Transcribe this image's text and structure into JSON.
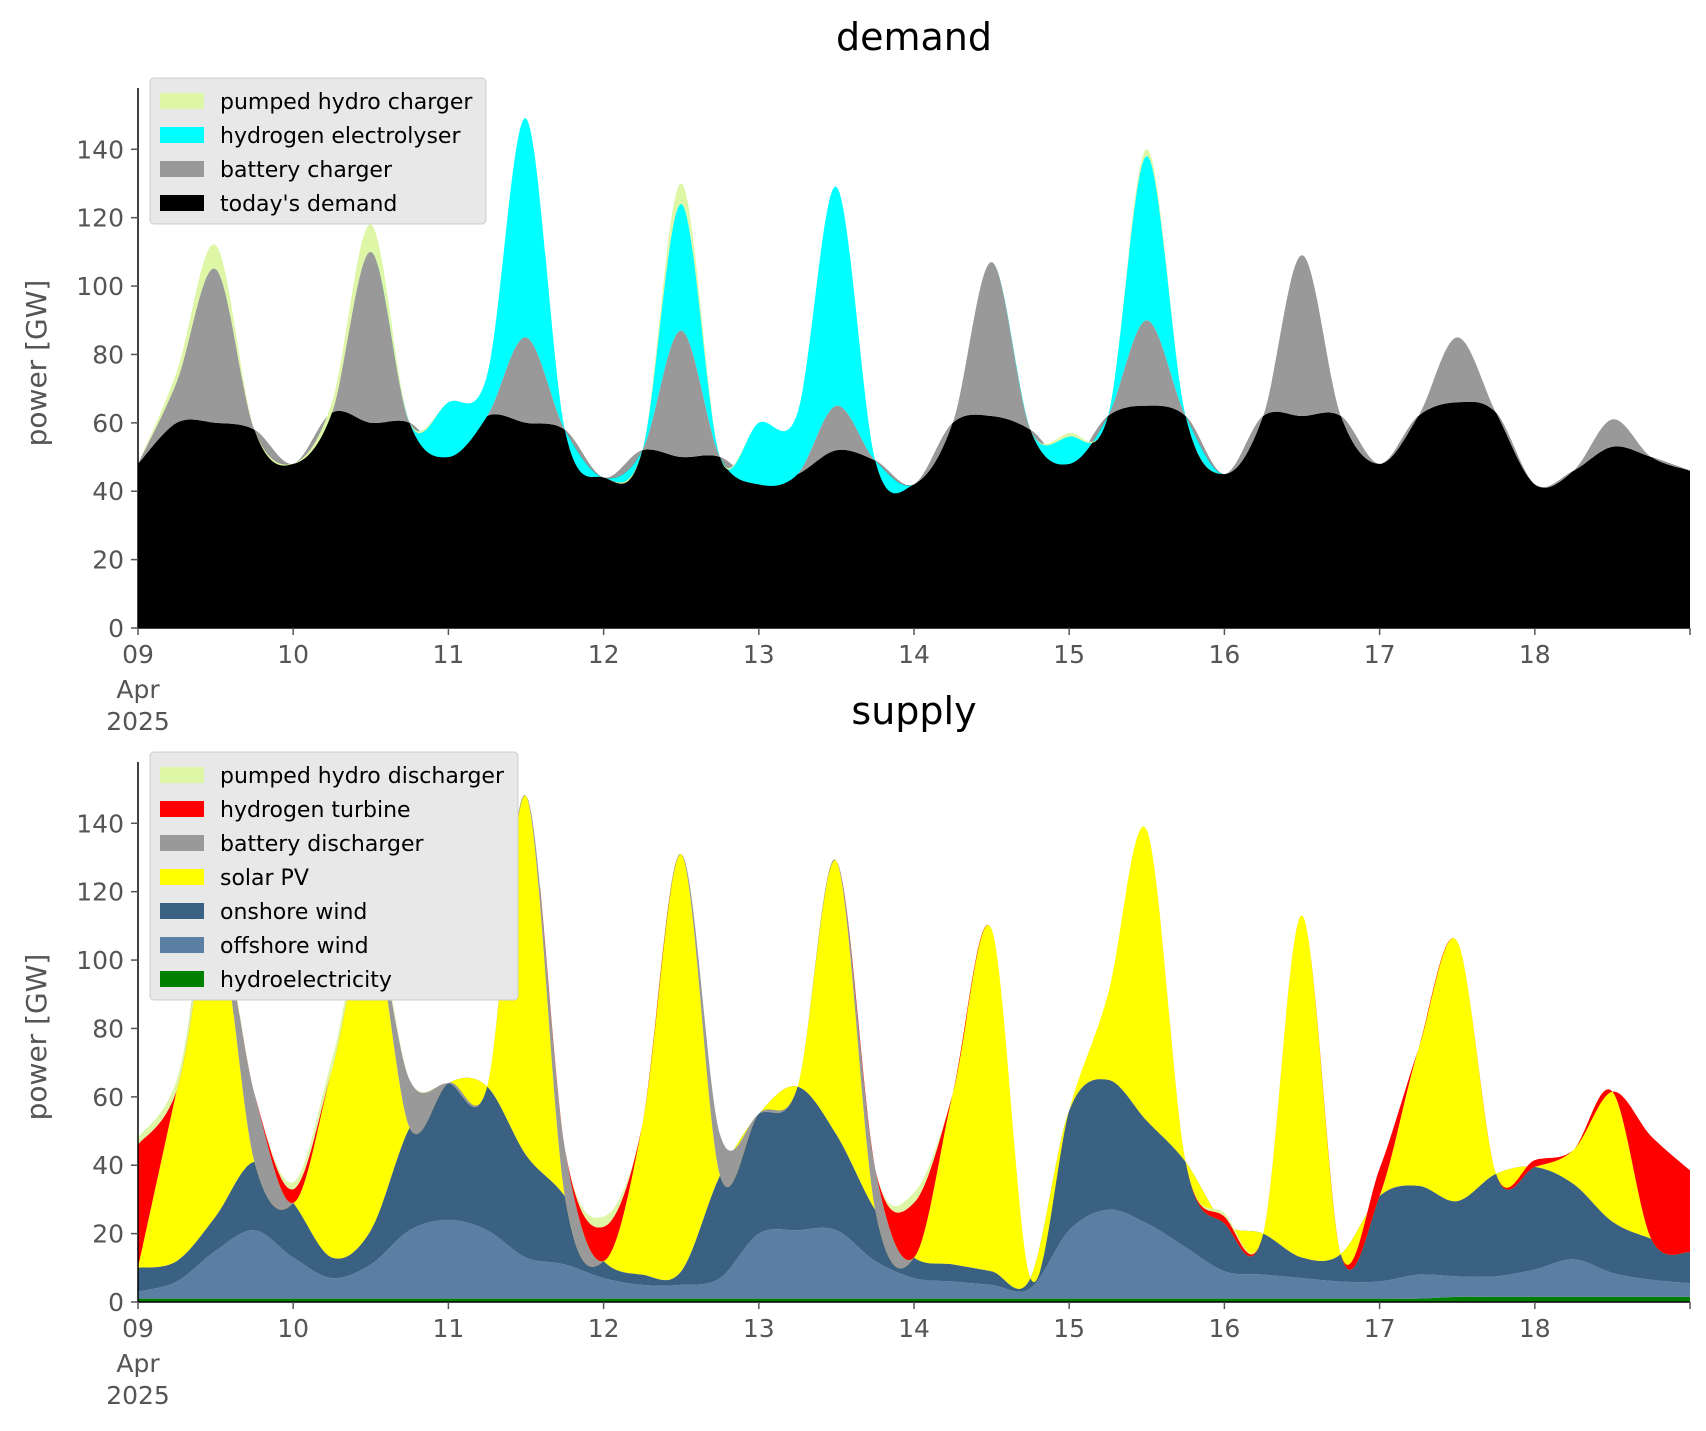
{
  "chart_data": [
    {
      "type": "area",
      "title": "demand",
      "ylabel": "power [GW]",
      "xlabel": "",
      "ylim": [
        0,
        155
      ],
      "xlim_days": [
        9,
        19
      ],
      "stacked": true,
      "grid": false,
      "legend_position": "top-left",
      "yticks": [
        "0",
        "20",
        "40",
        "60",
        "80",
        "100",
        "120",
        "140"
      ],
      "xticks": [
        "09",
        "10",
        "11",
        "12",
        "13",
        "14",
        "15",
        "16",
        "17",
        "18"
      ],
      "xtick_sub": [
        "Apr",
        "2025"
      ],
      "x": [
        9.0,
        9.25,
        9.5,
        9.75,
        10.0,
        10.25,
        10.5,
        10.75,
        11.0,
        11.25,
        11.5,
        11.75,
        12.0,
        12.25,
        12.5,
        12.75,
        13.0,
        13.25,
        13.5,
        13.75,
        14.0,
        14.25,
        14.5,
        14.75,
        15.0,
        15.25,
        15.5,
        15.75,
        16.0,
        16.25,
        16.5,
        16.75,
        17.0,
        17.25,
        17.5,
        17.75,
        18.0,
        18.25,
        18.5,
        18.75,
        19.0
      ],
      "series": [
        {
          "name": "today's demand",
          "color": "#000000",
          "values": [
            48,
            60,
            60,
            58,
            48,
            63,
            60,
            60,
            50,
            62,
            60,
            58,
            44,
            52,
            50,
            50,
            42,
            45,
            52,
            49,
            42,
            60,
            62,
            58,
            48,
            62,
            65,
            62,
            45,
            62,
            62,
            62,
            48,
            62,
            66,
            63,
            42,
            46,
            53,
            50,
            46
          ]
        },
        {
          "name": "battery charger",
          "color": "#999999",
          "values": [
            0,
            12,
            45,
            0,
            0,
            0,
            50,
            0,
            0,
            0,
            25,
            0,
            0,
            0,
            37,
            0,
            0,
            0,
            13,
            0,
            0,
            0,
            45,
            0,
            0,
            0,
            25,
            0,
            0,
            0,
            47,
            0,
            0,
            0,
            19,
            0,
            0,
            0,
            8,
            0,
            0
          ]
        },
        {
          "name": "hydrogen electrolyser",
          "color": "#00ffff",
          "values": [
            0,
            0,
            0,
            0,
            0,
            0,
            0,
            0,
            16,
            12,
            64,
            0,
            0,
            0,
            37,
            0,
            18,
            18,
            64,
            0,
            0,
            0,
            0,
            0,
            8,
            0,
            48,
            0,
            0,
            0,
            0,
            0,
            0,
            0,
            0,
            0,
            0,
            0,
            0,
            0,
            0
          ]
        },
        {
          "name": "pumped hydro charger",
          "color": "#ddf7a7",
          "values": [
            0,
            3,
            7,
            0,
            0,
            3,
            8,
            0,
            0,
            0,
            0,
            0,
            0,
            0,
            6,
            0,
            0,
            0,
            0,
            0,
            0,
            0,
            0,
            0,
            1,
            0,
            2,
            0,
            0,
            0,
            0,
            0,
            0,
            0,
            0,
            0,
            0,
            0,
            0,
            0,
            0
          ]
        }
      ]
    },
    {
      "type": "area",
      "title": "supply",
      "ylabel": "power [GW]",
      "xlabel": "",
      "ylim": [
        0,
        155
      ],
      "xlim_days": [
        9,
        19
      ],
      "stacked": true,
      "grid": false,
      "legend_position": "top-left",
      "yticks": [
        "0",
        "20",
        "40",
        "60",
        "80",
        "100",
        "120",
        "140"
      ],
      "xticks": [
        "09",
        "10",
        "11",
        "12",
        "13",
        "14",
        "15",
        "16",
        "17",
        "18"
      ],
      "xtick_sub": [
        "Apr",
        "2025"
      ],
      "x": [
        9.0,
        9.25,
        9.5,
        9.75,
        10.0,
        10.25,
        10.5,
        10.75,
        11.0,
        11.25,
        11.5,
        11.75,
        12.0,
        12.25,
        12.5,
        12.75,
        13.0,
        13.25,
        13.5,
        13.75,
        14.0,
        14.25,
        14.5,
        14.75,
        15.0,
        15.25,
        15.5,
        15.75,
        16.0,
        16.25,
        16.5,
        16.75,
        17.0,
        17.25,
        17.5,
        17.75,
        18.0,
        18.25,
        18.5,
        18.75,
        19.0
      ],
      "series": [
        {
          "name": "hydroelectricity",
          "color": "#008000",
          "values": [
            1,
            1,
            1,
            1,
            1,
            1,
            1,
            1,
            1,
            1,
            1,
            1,
            1,
            1,
            1,
            1,
            1,
            1,
            1,
            1,
            1,
            1,
            1,
            1,
            1,
            1,
            1,
            1,
            1,
            1,
            1,
            1,
            1,
            1,
            1.5,
            1.5,
            1.5,
            1.5,
            1.5,
            1.5,
            1.5
          ]
        },
        {
          "name": "offshore wind",
          "color": "#5b7fa3",
          "values": [
            2,
            5,
            14,
            20,
            12,
            6,
            10,
            20,
            23,
            20,
            12,
            10,
            6,
            4,
            4,
            6,
            19,
            20,
            20,
            11,
            6,
            5,
            4,
            3,
            20,
            26,
            22,
            15,
            8,
            7,
            6,
            5,
            5,
            7,
            6,
            6,
            8,
            11,
            7,
            5,
            4
          ]
        },
        {
          "name": "onshore wind",
          "color": "#3b6182",
          "values": [
            7,
            6,
            10,
            20,
            16,
            6,
            10,
            30,
            40,
            42,
            30,
            20,
            5,
            3,
            4,
            30,
            35,
            42,
            28,
            15,
            6,
            5,
            4,
            3,
            35,
            38,
            30,
            25,
            14,
            12,
            6,
            8,
            25,
            26,
            22,
            30,
            30,
            22,
            15,
            12,
            9
          ]
        },
        {
          "name": "solar PV",
          "color": "#ffff00",
          "values": [
            0,
            50,
            88,
            0,
            0,
            55,
            90,
            0,
            0,
            0,
            105,
            0,
            0,
            44,
            122,
            0,
            0,
            0,
            80,
            0,
            0,
            50,
            100,
            0,
            0,
            25,
            85,
            0,
            0,
            0,
            100,
            0,
            0,
            40,
            76,
            0,
            0,
            10,
            38,
            0,
            0
          ]
        },
        {
          "name": "battery discharger",
          "color": "#999999",
          "values": [
            0,
            0,
            0,
            20,
            0,
            0,
            0,
            14,
            0,
            0,
            0,
            14,
            0,
            0,
            0,
            12,
            0,
            0,
            0,
            12,
            0,
            0,
            0,
            0,
            0,
            0,
            0,
            0,
            0,
            0,
            0,
            0,
            0,
            0,
            0,
            0,
            0,
            0,
            0,
            0,
            0
          ]
        },
        {
          "name": "hydrogen turbine",
          "color": "#ff0000",
          "values": [
            36,
            0,
            0,
            0,
            4,
            0,
            0,
            0,
            0,
            0,
            0,
            0,
            10,
            0,
            0,
            0,
            0,
            0,
            0,
            0,
            16,
            0,
            0,
            0,
            0,
            0,
            0,
            0,
            2,
            0,
            0,
            0,
            8,
            0,
            0,
            0,
            2,
            0,
            0,
            30,
            24
          ]
        },
        {
          "name": "pumped hydro discharger",
          "color": "#ddf7a7",
          "values": [
            2,
            3,
            3,
            0,
            2,
            3,
            3,
            0,
            0,
            0,
            0,
            0,
            3,
            0,
            0,
            0,
            0,
            0,
            0,
            0,
            3,
            0,
            0,
            0,
            0,
            0,
            0,
            0,
            1,
            0,
            0,
            0,
            0,
            0,
            0,
            0,
            0,
            0,
            0,
            0,
            0
          ]
        }
      ]
    }
  ]
}
